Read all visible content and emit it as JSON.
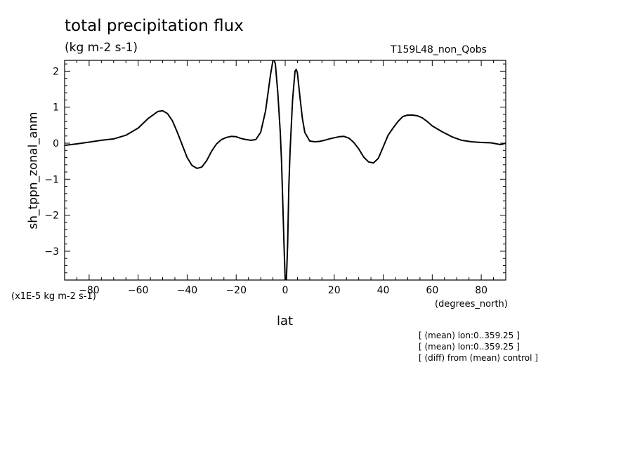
{
  "chart_data": {
    "type": "line",
    "title": "total precipitation flux",
    "units": "(kg m-2 s-1)",
    "run_label": "T159L48_non_Qobs",
    "ylabel": "sh_tppn_zonal_anm",
    "xlabel": "lat",
    "x_units": "(degrees_north)",
    "y_scale_label": "(x1E-5 kg m-2 s-1)",
    "xlim": [
      -90,
      90
    ],
    "ylim": [
      -3.8,
      2.3
    ],
    "x_ticks": [
      -80,
      -60,
      -40,
      -20,
      0,
      20,
      40,
      60,
      80
    ],
    "y_ticks": [
      2,
      1,
      0,
      -1,
      -2,
      -3
    ],
    "grid": false,
    "series": [
      {
        "color": "#000000",
        "x": [
          -90,
          -85,
          -80,
          -75,
          -70,
          -65,
          -60,
          -56,
          -52,
          -50,
          -48,
          -46,
          -44,
          -42,
          -40,
          -38,
          -36,
          -34,
          -32,
          -30,
          -28,
          -26,
          -24,
          -22,
          -20,
          -18,
          -16,
          -14,
          -12,
          -10,
          -8,
          -7,
          -6,
          -5,
          -4.5,
          -4,
          -3,
          -2,
          -1.5,
          -1,
          -0.5,
          0,
          0.5,
          1,
          1.5,
          2,
          3,
          4,
          4.5,
          5,
          6,
          7,
          8,
          10,
          12,
          14,
          16,
          18,
          20,
          22,
          24,
          26,
          28,
          30,
          32,
          34,
          36,
          38,
          40,
          42,
          44,
          46,
          48,
          50,
          52,
          54,
          56,
          58,
          60,
          64,
          68,
          72,
          76,
          80,
          84,
          88,
          90
        ],
        "y": [
          -0.06,
          -0.02,
          0.03,
          0.08,
          0.12,
          0.22,
          0.42,
          0.68,
          0.88,
          0.9,
          0.82,
          0.62,
          0.3,
          -0.05,
          -0.4,
          -0.62,
          -0.7,
          -0.66,
          -0.48,
          -0.22,
          -0.02,
          0.1,
          0.16,
          0.19,
          0.18,
          0.13,
          0.1,
          0.08,
          0.1,
          0.3,
          0.9,
          1.4,
          1.9,
          2.3,
          2.3,
          2.2,
          1.4,
          0.3,
          -0.5,
          -1.6,
          -2.8,
          -3.8,
          -3.8,
          -2.8,
          -1.2,
          -0.2,
          1.2,
          2.0,
          2.05,
          1.95,
          1.3,
          0.7,
          0.3,
          0.06,
          0.04,
          0.05,
          0.08,
          0.12,
          0.15,
          0.18,
          0.19,
          0.14,
          0.02,
          -0.16,
          -0.38,
          -0.52,
          -0.55,
          -0.42,
          -0.1,
          0.22,
          0.42,
          0.6,
          0.74,
          0.78,
          0.78,
          0.76,
          0.7,
          0.6,
          0.48,
          0.32,
          0.18,
          0.08,
          0.04,
          0.02,
          0.01,
          -0.04,
          0.0
        ]
      }
    ]
  },
  "notes": [
    "[ (mean) lon:0..359.25 ]",
    "[ (mean) lon:0..359.25 ]",
    "[ (diff) from (mean) control ]"
  ]
}
